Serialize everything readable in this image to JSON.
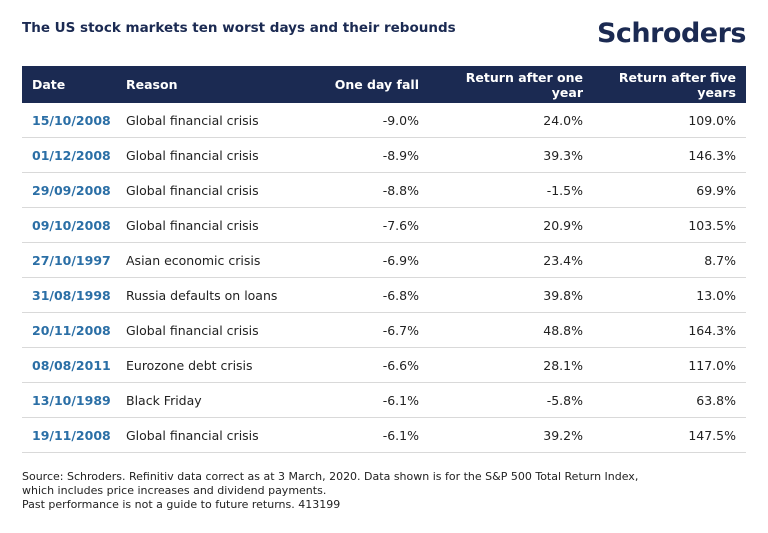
{
  "header": {
    "title": "The US stock markets ten worst days and their rebounds",
    "logo": "Schroders"
  },
  "table": {
    "columns": [
      "Date",
      "Reason",
      "One day fall",
      "Return after one year",
      "Return after five years"
    ],
    "rows": [
      [
        "15/10/2008",
        "Global financial crisis",
        "-9.0%",
        "24.0%",
        "109.0%"
      ],
      [
        "01/12/2008",
        "Global financial crisis",
        "-8.9%",
        "39.3%",
        "146.3%"
      ],
      [
        "29/09/2008",
        "Global financial crisis",
        "-8.8%",
        "-1.5%",
        "69.9%"
      ],
      [
        "09/10/2008",
        "Global financial crisis",
        "-7.6%",
        "20.9%",
        "103.5%"
      ],
      [
        "27/10/1997",
        "Asian economic crisis",
        "-6.9%",
        "23.4%",
        "8.7%"
      ],
      [
        "31/08/1998",
        "Russia defaults on loans",
        "-6.8%",
        "39.8%",
        "13.0%"
      ],
      [
        "20/11/2008",
        "Global financial crisis",
        "-6.7%",
        "48.8%",
        "164.3%"
      ],
      [
        "08/08/2011",
        "Eurozone debt crisis",
        "-6.6%",
        "28.1%",
        "117.0%"
      ],
      [
        "13/10/1989",
        "Black Friday",
        "-6.1%",
        "-5.8%",
        "63.8%"
      ],
      [
        "19/11/2008",
        "Global financial crisis",
        "-6.1%",
        "39.2%",
        "147.5%"
      ]
    ]
  },
  "footer": [
    "Source: Schroders. Refinitiv data correct as at 3 March, 2020. Data shown is for the S&P 500 Total Return Index,",
    "which includes price increases and dividend payments.",
    "Past performance is not a guide to future returns. 413199"
  ]
}
